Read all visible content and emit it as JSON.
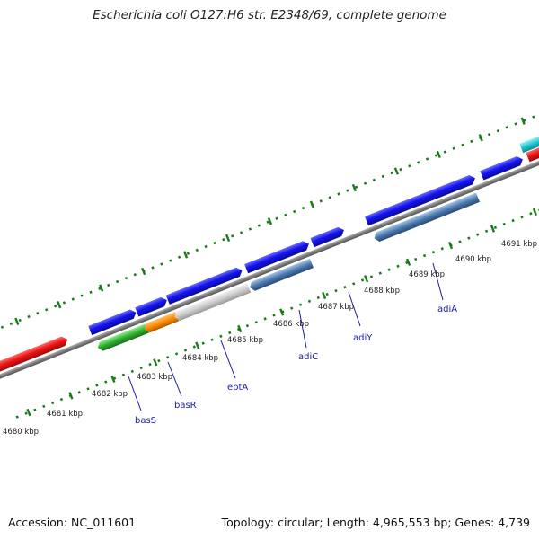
{
  "title": "Escherichia coli O127:H6 str. E2348/69, complete genome",
  "footer": {
    "accession": "Accession: NC_011601",
    "summary": "Topology: circular; Length: 4,965,553 bp; Genes: 4,739"
  },
  "scale_labels": [
    "4680 kbp",
    "4681 kbp",
    "4682 kbp",
    "4683 kbp",
    "4684 kbp",
    "4685 kbp",
    "4686 kbp",
    "4687 kbp",
    "4688 kbp",
    "4689 kbp",
    "4690 kbp",
    "4691 kbp"
  ],
  "gene_labels": [
    "basS",
    "basR",
    "eptA",
    "adiC",
    "adiY",
    "adiA"
  ],
  "colors": {
    "cds_forward": "#1010e0",
    "cds_reverse_highlight": "#e01010",
    "cds_cyan": "#20c8d0",
    "cds_green": "#30b030",
    "cds_orange": "#ff8c00",
    "cds_grey": "#c8c8c8",
    "cds_steel": "#4a7ab0",
    "backbone": "#808080",
    "ticks": "#1a7a1a",
    "gene_label": "#1a1aa6"
  }
}
